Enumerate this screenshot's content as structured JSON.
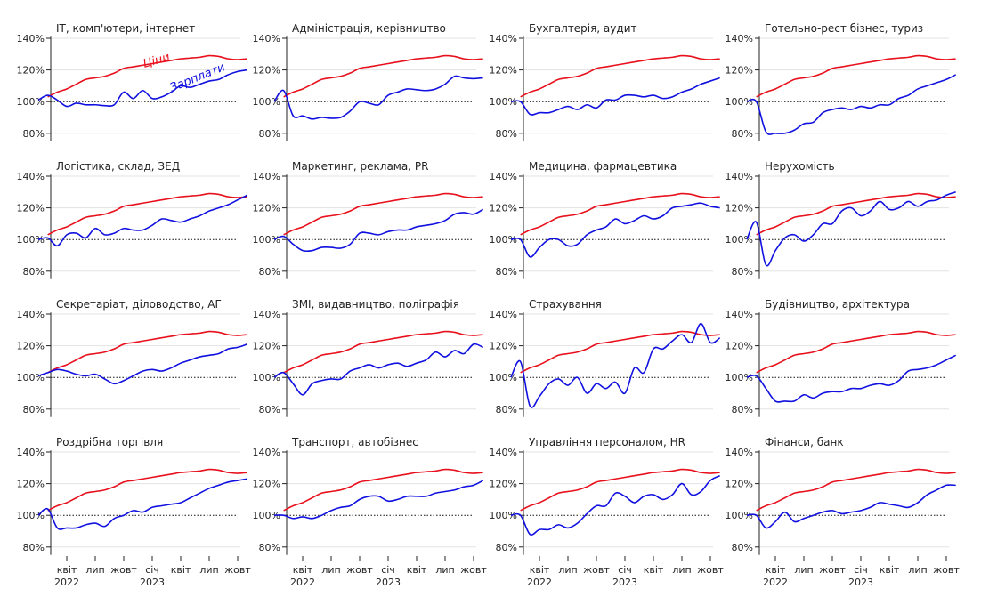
{
  "chart_data": {
    "type": "line",
    "layout": "small-multiples",
    "baseline": 100,
    "ylim": [
      75,
      145
    ],
    "yticks": [
      "80%",
      "100%",
      "120%",
      "140%"
    ],
    "x_ticks": [
      {
        "month": "2022-04",
        "label": "квіт",
        "year": "2022"
      },
      {
        "month": "2022-07",
        "label": "лип"
      },
      {
        "month": "2022-10",
        "label": "жовт"
      },
      {
        "month": "2023-01",
        "label": "січ",
        "year": "2023"
      },
      {
        "month": "2023-04",
        "label": "квіт"
      },
      {
        "month": "2023-07",
        "label": "лип"
      },
      {
        "month": "2023-10",
        "label": "жовт"
      }
    ],
    "x_months": [
      "2022-01",
      "2022-02",
      "2022-03",
      "2022-04",
      "2022-05",
      "2022-06",
      "2022-07",
      "2022-08",
      "2022-09",
      "2022-10",
      "2022-11",
      "2022-12",
      "2023-01",
      "2023-02",
      "2023-03",
      "2023-04",
      "2023-05",
      "2023-06",
      "2023-07",
      "2023-08",
      "2023-09",
      "2023-10",
      "2023-11"
    ],
    "series_labels": {
      "prices": "Ціни",
      "wages": "Зарплати"
    },
    "colors": {
      "prices": "#e8101c",
      "wages": "#1010e0"
    },
    "prices": [
      100,
      103,
      106,
      108,
      111,
      114,
      115,
      116,
      118,
      121,
      122,
      123,
      124,
      125,
      126,
      127,
      127.5,
      128,
      129,
      128.5,
      127,
      126.5,
      127
    ],
    "panels": [
      {
        "title": "IT, комп'ютери, інтернет",
        "wages": [
          101,
          104,
          101,
          97,
          99,
          98,
          98,
          97.5,
          98,
          106,
          102,
          107,
          102,
          103,
          106,
          110,
          109,
          111,
          113,
          114,
          117,
          119,
          120
        ]
      },
      {
        "title": "Адміністрація, керівництво",
        "wages": [
          100,
          107,
          91,
          91,
          89,
          90,
          89.5,
          90,
          94,
          100,
          99,
          98,
          104,
          106,
          108,
          107.5,
          107,
          108,
          111,
          116,
          115,
          114.5,
          115
        ]
      },
      {
        "title": "Бухгалтерія, аудит",
        "wages": [
          100,
          100,
          92,
          93,
          93,
          95,
          97,
          95,
          98,
          96,
          101,
          101,
          104,
          104,
          103,
          104,
          102,
          103,
          106,
          108,
          111,
          113,
          115
        ]
      },
      {
        "title": "Готельно-рест бізнес, туриз",
        "wages": [
          100,
          100,
          81,
          80,
          80,
          82,
          86,
          87,
          93,
          95,
          96,
          95,
          97,
          96,
          98,
          98,
          102,
          104,
          108,
          110,
          112,
          114,
          117
        ]
      },
      {
        "title": "Логістика, склад, ЗЕД",
        "wages": [
          100,
          101,
          96,
          103,
          104,
          101,
          107,
          103,
          104,
          107,
          106,
          106,
          109,
          113,
          112,
          111,
          113,
          115,
          118,
          120,
          122,
          125,
          128
        ]
      },
      {
        "title": "Маркетинг, реклама, PR",
        "wages": [
          100,
          102,
          97,
          93,
          93,
          95,
          95,
          94.5,
          97,
          104,
          104,
          103,
          105,
          106,
          106,
          108,
          109,
          110,
          112,
          116,
          117,
          116,
          119
        ]
      },
      {
        "title": "Медицина, фармацевтика",
        "wages": [
          100,
          100,
          89,
          95,
          100,
          100,
          96,
          97,
          103,
          106,
          108,
          113,
          110,
          112,
          115,
          113,
          115,
          120,
          121,
          122,
          123,
          121,
          120
        ]
      },
      {
        "title": "Нерухомість",
        "wages": [
          100,
          111,
          84,
          93,
          101,
          103,
          99,
          103,
          110,
          110,
          118,
          120,
          115,
          118,
          124,
          119,
          120,
          124,
          121,
          124,
          125,
          128,
          130
        ]
      },
      {
        "title": "Секретаріат, діловодство, АГ",
        "wages": [
          101,
          103,
          105,
          104,
          102,
          101,
          102,
          99,
          96,
          98,
          101,
          104,
          105,
          104,
          106,
          109,
          111,
          113,
          114,
          115,
          118,
          119,
          121
        ]
      },
      {
        "title": "ЗМІ, видавництво, поліграфія",
        "wages": [
          100,
          103,
          96,
          89,
          96,
          98,
          99,
          99,
          104,
          106,
          108,
          106,
          108,
          109,
          107,
          109,
          111,
          116,
          113,
          117,
          115,
          121,
          119
        ]
      },
      {
        "title": "Страхування",
        "wages": [
          100,
          110,
          82,
          88,
          96,
          99,
          95,
          100,
          90,
          96,
          93,
          97,
          90,
          106,
          103,
          118,
          118,
          123,
          127,
          122,
          134,
          122,
          125
        ]
      },
      {
        "title": "Будівництво, архітектура",
        "wages": [
          100,
          101,
          93,
          85,
          85,
          85,
          89,
          87,
          90,
          91,
          91,
          93,
          93,
          95,
          96,
          95,
          98,
          104,
          105,
          106,
          108,
          111,
          114
        ]
      },
      {
        "title": "Роздрібна торгівля",
        "wages": [
          100,
          104,
          92,
          92,
          92,
          94,
          95,
          93,
          98,
          100,
          103,
          102,
          105,
          106,
          107,
          108,
          111,
          114,
          117,
          119,
          121,
          122,
          123
        ]
      },
      {
        "title": "Транспорт, автобізнес",
        "wages": [
          100,
          100,
          98,
          99,
          98,
          100,
          103,
          105,
          106,
          110,
          112,
          112,
          109,
          110,
          112,
          112,
          112,
          114,
          115,
          116,
          118,
          119,
          122
        ]
      },
      {
        "title": "Управління персоналом, HR",
        "wages": [
          100,
          100,
          88,
          91,
          91,
          94,
          92,
          95,
          101,
          106,
          106,
          114,
          112,
          108,
          112,
          113,
          110,
          113,
          120,
          113,
          115,
          122,
          125
        ]
      },
      {
        "title": "Фінанси, банк",
        "wages": [
          100,
          100,
          92,
          96,
          102,
          96,
          98,
          100,
          102,
          103,
          101,
          102,
          103,
          105,
          108,
          107,
          106,
          105,
          108,
          113,
          116,
          119,
          119
        ]
      }
    ]
  }
}
